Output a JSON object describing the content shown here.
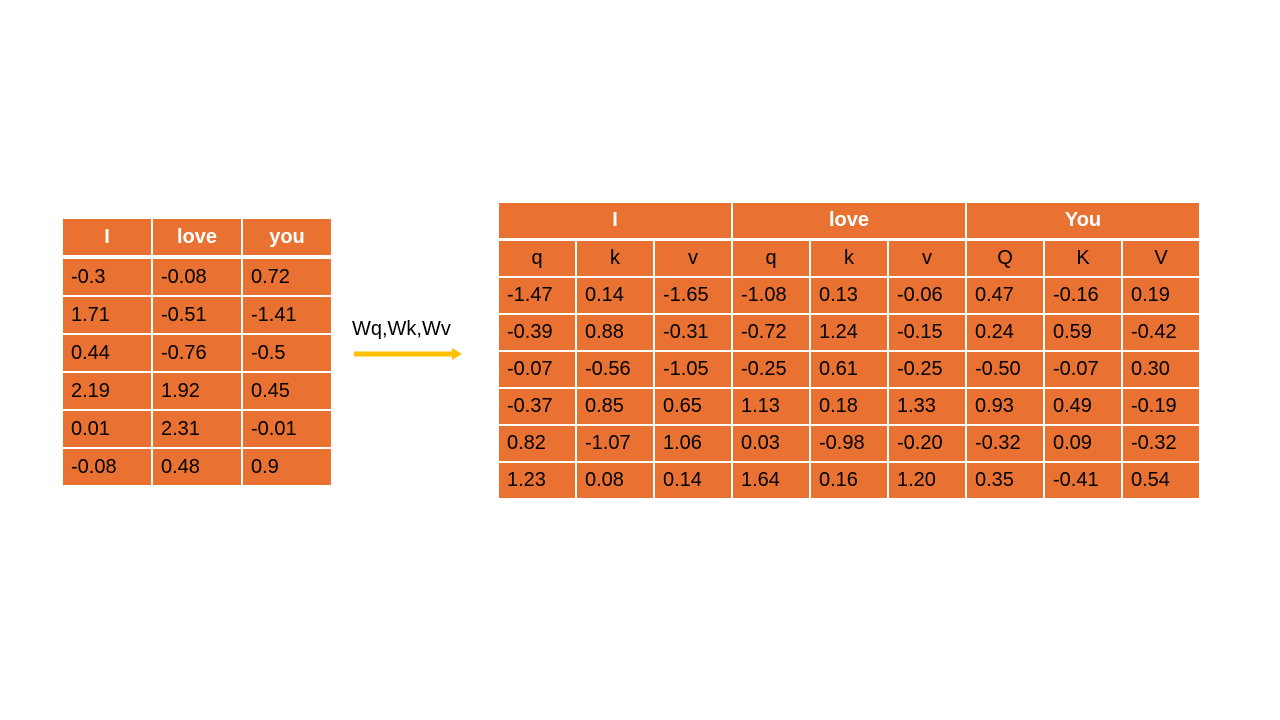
{
  "left_table": {
    "headers": [
      "I",
      "love",
      "you"
    ],
    "rows": [
      [
        "-0.3",
        "-0.08",
        "0.72"
      ],
      [
        "1.71",
        "-0.51",
        "-1.41"
      ],
      [
        "0.44",
        "-0.76",
        "-0.5"
      ],
      [
        "2.19",
        "1.92",
        "0.45"
      ],
      [
        " 0.01",
        "2.31",
        "-0.01"
      ],
      [
        "-0.08",
        "0.48",
        "0.9"
      ]
    ]
  },
  "arrow": {
    "label": "Wq,Wk,Wv",
    "color": "#ffc000"
  },
  "right_table": {
    "groups": [
      "I",
      "love",
      "You"
    ],
    "subheaders": [
      "q",
      "k",
      "v",
      "q",
      "k",
      "v",
      "Q",
      "K",
      "V"
    ],
    "rows": [
      [
        "-1.47",
        "0.14",
        "-1.65",
        "-1.08",
        "0.13",
        "-0.06",
        "0.47",
        "-0.16",
        "0.19"
      ],
      [
        "-0.39",
        "0.88",
        "-0.31",
        "-0.72",
        "1.24",
        "-0.15",
        "0.24",
        "0.59",
        "-0.42"
      ],
      [
        "-0.07",
        "-0.56",
        "-1.05",
        "-0.25",
        "0.61",
        "-0.25",
        "-0.50",
        "-0.07",
        "0.30"
      ],
      [
        "-0.37",
        "0.85",
        "0.65",
        "1.13",
        "0.18",
        "1.33",
        "0.93",
        "0.49",
        "-0.19"
      ],
      [
        "0.82",
        "-1.07",
        "1.06",
        "0.03",
        "-0.98",
        "-0.20",
        "-0.32",
        "0.09",
        "-0.32"
      ],
      [
        "1.23",
        "0.08",
        "0.14",
        "1.64",
        "0.16",
        "1.20",
        "0.35",
        "-0.41",
        "0.54"
      ]
    ]
  },
  "colors": {
    "cell_fill": "#e97132",
    "border": "#ffffff"
  }
}
